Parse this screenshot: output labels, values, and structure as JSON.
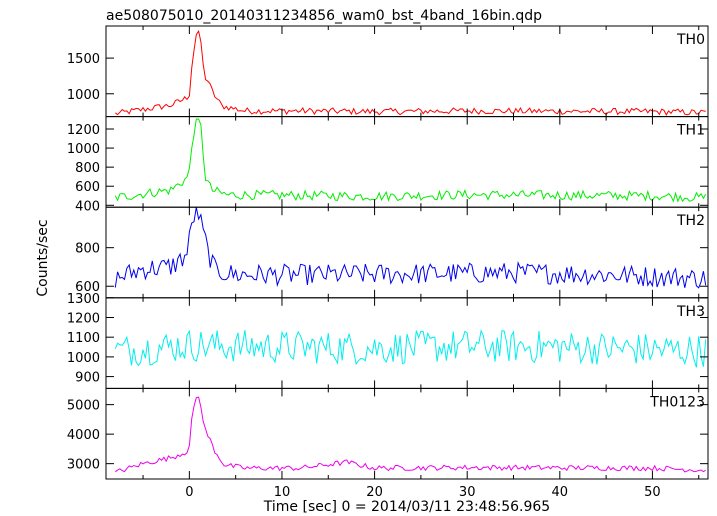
{
  "chart_data": {
    "type": "line",
    "title": "ae508075010_20140311234856_wam0_bst_4band_16bin.qdp",
    "xlabel": "Time [sec] 0 = 2014/03/11 23:48:56.965",
    "ylabel": "Counts/sec",
    "xlim": [
      -9,
      56
    ],
    "xticks": [
      0,
      10,
      20,
      30,
      40,
      50
    ],
    "grid": false,
    "panels": [
      {
        "name": "TH0",
        "color": "#ff0000",
        "ylim": [
          680,
          1950
        ],
        "yticks": [
          1000,
          1500
        ],
        "baseline": [
          [
            -8,
            720
          ],
          [
            -5,
            780
          ],
          [
            -2,
            840
          ],
          [
            -0.3,
            940
          ],
          [
            0,
            1000
          ],
          [
            0.3,
            1450
          ],
          [
            0.8,
            1870
          ],
          [
            1.2,
            1800
          ],
          [
            1.6,
            1250
          ],
          [
            2.0,
            1180
          ],
          [
            2.6,
            1000
          ],
          [
            3.5,
            830
          ],
          [
            6,
            760
          ],
          [
            12,
            760
          ],
          [
            20,
            750
          ],
          [
            30,
            760
          ],
          [
            40,
            755
          ],
          [
            50,
            750
          ],
          [
            55.8,
            735
          ]
        ],
        "noise": 45
      },
      {
        "name": "TH1",
        "color": "#00ee00",
        "ylim": [
          380,
          1330
        ],
        "yticks": [
          400,
          600,
          800,
          1000,
          1200
        ],
        "baseline": [
          [
            -8,
            480
          ],
          [
            -5,
            520
          ],
          [
            -2,
            560
          ],
          [
            -0.3,
            680
          ],
          [
            0,
            760
          ],
          [
            0.4,
            1150
          ],
          [
            0.9,
            1300
          ],
          [
            1.3,
            1200
          ],
          [
            1.7,
            700
          ],
          [
            2.4,
            560
          ],
          [
            4,
            510
          ],
          [
            10,
            505
          ],
          [
            20,
            495
          ],
          [
            30,
            510
          ],
          [
            40,
            505
          ],
          [
            50,
            500
          ],
          [
            55.8,
            480
          ]
        ],
        "noise": 50
      },
      {
        "name": "TH2",
        "color": "#0000ee",
        "ylim": [
          540,
          1010
        ],
        "yticks": [
          600,
          800
        ],
        "baseline": [
          [
            -8,
            640
          ],
          [
            -5,
            690
          ],
          [
            -2,
            700
          ],
          [
            -0.3,
            760
          ],
          [
            0,
            840
          ],
          [
            0.4,
            960
          ],
          [
            0.9,
            990
          ],
          [
            1.4,
            900
          ],
          [
            2.0,
            780
          ],
          [
            2.8,
            680
          ],
          [
            5,
            660
          ],
          [
            15,
            660
          ],
          [
            25,
            665
          ],
          [
            35,
            670
          ],
          [
            45,
            660
          ],
          [
            55.8,
            640
          ]
        ],
        "noise": 55
      },
      {
        "name": "TH3",
        "color": "#00eeee",
        "ylim": [
          840,
          1300
        ],
        "yticks": [
          900,
          1000,
          1100,
          1200,
          1300
        ],
        "baseline": [
          [
            -8,
            1030
          ],
          [
            0,
            1060
          ],
          [
            10,
            1050
          ],
          [
            20,
            1045
          ],
          [
            30,
            1055
          ],
          [
            40,
            1050
          ],
          [
            55.8,
            1030
          ]
        ],
        "noise": 85
      },
      {
        "name": "TH0123",
        "color": "#ee00ee",
        "ylim": [
          2480,
          5550
        ],
        "yticks": [
          3000,
          4000,
          5000
        ],
        "baseline": [
          [
            -8,
            2700
          ],
          [
            -5,
            3000
          ],
          [
            -2,
            3200
          ],
          [
            -0.3,
            3400
          ],
          [
            0,
            3600
          ],
          [
            0.3,
            4600
          ],
          [
            0.8,
            5350
          ],
          [
            1.2,
            5100
          ],
          [
            1.6,
            4200
          ],
          [
            2.1,
            3900
          ],
          [
            2.8,
            3400
          ],
          [
            3.8,
            2950
          ],
          [
            6,
            2850
          ],
          [
            12,
            2850
          ],
          [
            17,
            3050
          ],
          [
            20,
            2850
          ],
          [
            30,
            2870
          ],
          [
            40,
            2860
          ],
          [
            50,
            2850
          ],
          [
            55.8,
            2780
          ]
        ],
        "noise": 90
      }
    ]
  }
}
